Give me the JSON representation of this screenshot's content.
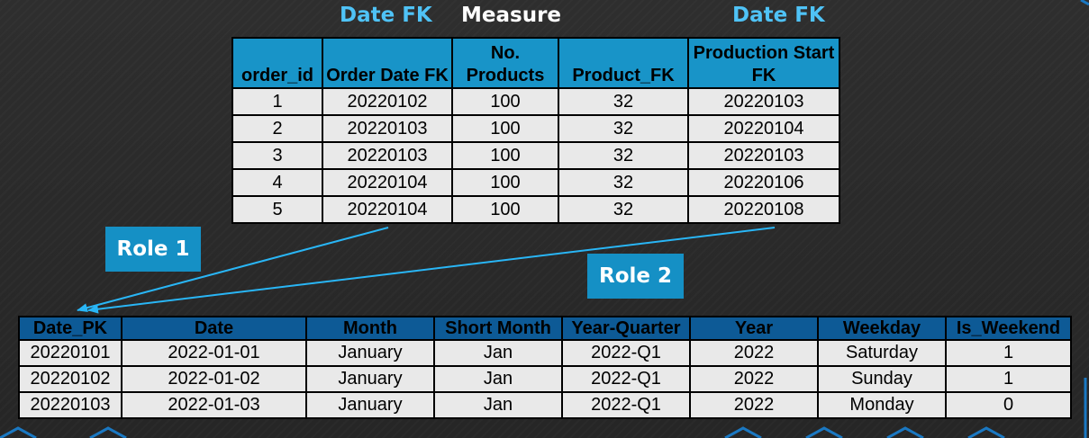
{
  "header": {
    "order_date_fk_label": "Date FK",
    "measure_label": "Measure",
    "production_start_fk_label": "Date FK"
  },
  "fact_table": {
    "columns": [
      "order_id",
      "Order Date FK",
      "No. Products",
      "Product_FK",
      "Production Start FK"
    ],
    "rows": [
      [
        "1",
        "20220102",
        "100",
        "32",
        "20220103"
      ],
      [
        "2",
        "20220103",
        "100",
        "32",
        "20220104"
      ],
      [
        "3",
        "20220103",
        "100",
        "32",
        "20220103"
      ],
      [
        "4",
        "20220104",
        "100",
        "32",
        "20220106"
      ],
      [
        "5",
        "20220104",
        "100",
        "32",
        "20220108"
      ]
    ]
  },
  "roles": {
    "role1": "Role 1",
    "role2": "Role 2"
  },
  "dim_table": {
    "columns": [
      "Date_PK",
      "Date",
      "Month",
      "Short Month",
      "Year-Quarter",
      "Year",
      "Weekday",
      "Is_Weekend"
    ],
    "rows": [
      [
        "20220101",
        "2022-01-01",
        "January",
        "Jan",
        "2022-Q1",
        "2022",
        "Saturday",
        "1"
      ],
      [
        "20220102",
        "2022-01-02",
        "January",
        "Jan",
        "2022-Q1",
        "2022",
        "Sunday",
        "1"
      ],
      [
        "20220103",
        "2022-01-03",
        "January",
        "Jan",
        "2022-Q1",
        "2022",
        "Monday",
        "0"
      ]
    ]
  },
  "colors": {
    "background": "#2b2b2b",
    "fact_header": "#1894c8",
    "dim_header": "#0d5a96",
    "role_box": "#1590c5",
    "fk_label": "#4fc3f7",
    "arrow": "#29b6f6"
  }
}
